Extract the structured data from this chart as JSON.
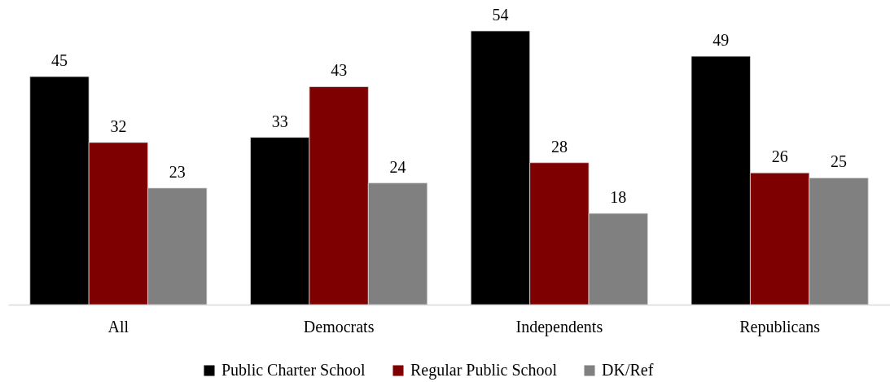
{
  "chart_data": {
    "type": "bar",
    "categories": [
      "All",
      "Democrats",
      "Independents",
      "Republicans"
    ],
    "series": [
      {
        "name": "Public Charter School",
        "color": "#000000",
        "values": [
          45,
          33,
          54,
          49
        ]
      },
      {
        "name": "Regular Public School",
        "color": "#7f0000",
        "values": [
          32,
          43,
          28,
          26
        ]
      },
      {
        "name": "DK/Ref",
        "color": "#808080",
        "values": [
          23,
          24,
          18,
          25
        ]
      }
    ],
    "data_labels": true,
    "legend": "bottom",
    "grid": false,
    "tick_labels": "x"
  }
}
